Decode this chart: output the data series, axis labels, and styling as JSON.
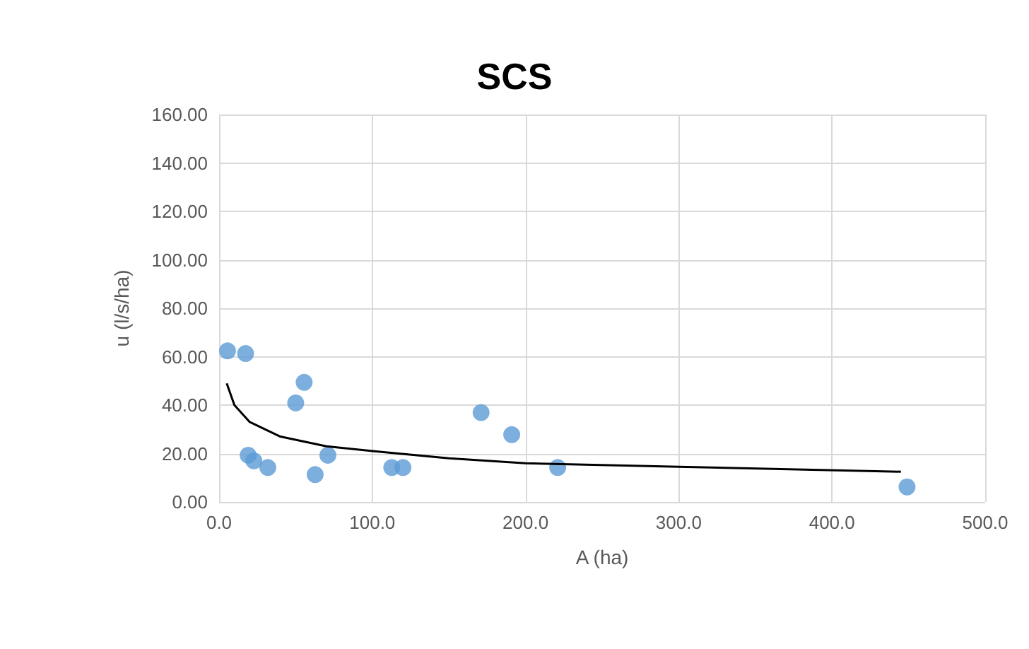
{
  "chart_data": {
    "type": "scatter",
    "title": "SCS",
    "xlabel": "A (ha)",
    "ylabel": "u (l/s/ha)",
    "xlim": [
      0,
      500
    ],
    "ylim": [
      0,
      160
    ],
    "xticks": [
      {
        "value": 0,
        "label": "0.0"
      },
      {
        "value": 100,
        "label": "100.0"
      },
      {
        "value": 200,
        "label": "200.0"
      },
      {
        "value": 300,
        "label": "300.0"
      },
      {
        "value": 400,
        "label": "400.0"
      },
      {
        "value": 500,
        "label": "500.0"
      }
    ],
    "yticks": [
      {
        "value": 0,
        "label": "0.00"
      },
      {
        "value": 20,
        "label": "20.00"
      },
      {
        "value": 40,
        "label": "40.00"
      },
      {
        "value": 60,
        "label": "60.00"
      },
      {
        "value": 80,
        "label": "80.00"
      },
      {
        "value": 100,
        "label": "100.00"
      },
      {
        "value": 120,
        "label": "120.00"
      },
      {
        "value": 140,
        "label": "140.00"
      },
      {
        "value": 160,
        "label": "160.00"
      }
    ],
    "grid": true,
    "marker": "circle",
    "series": [
      {
        "color": "#5b9bd5",
        "x": [
          5.5,
          17.3,
          55.5,
          50,
          19,
          22.7,
          31.8,
          62.7,
          71,
          112.7,
          120,
          171,
          191,
          221,
          449
        ],
        "values": [
          62.4,
          61.3,
          49.4,
          40.9,
          19.3,
          17,
          14.2,
          11.3,
          19.3,
          14.2,
          14.2,
          36.9,
          27.8,
          14.2,
          6.2
        ]
      },
      {
        "type": "line",
        "color": "#000000",
        "line_style": "solid",
        "marker": "none",
        "x": [
          5,
          10,
          20,
          40,
          70,
          100,
          150,
          200,
          300,
          445
        ],
        "values": [
          49,
          40,
          33,
          27,
          23,
          21,
          18,
          16,
          14.5,
          12.5
        ]
      }
    ]
  }
}
